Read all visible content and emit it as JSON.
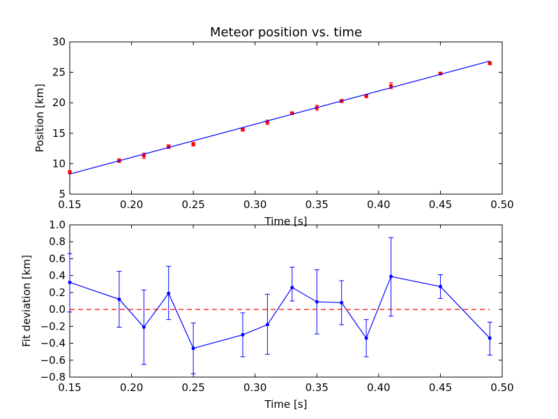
{
  "chart_data": [
    {
      "type": "scatter",
      "title": "Meteor position vs. time",
      "xlabel": "Time [s]",
      "ylabel": "Position [km]",
      "xlim": [
        0.15,
        0.5
      ],
      "ylim": [
        5,
        30
      ],
      "xticks": [
        "0.15",
        "0.20",
        "0.25",
        "0.30",
        "0.35",
        "0.40",
        "0.45",
        "0.50"
      ],
      "yticks": [
        "5",
        "10",
        "15",
        "20",
        "25",
        "30"
      ],
      "series": [
        {
          "kind": "points_with_error_bars",
          "color": "#ff0000",
          "x": [
            0.15,
            0.19,
            0.21,
            0.23,
            0.25,
            0.29,
            0.31,
            0.33,
            0.35,
            0.37,
            0.39,
            0.41,
            0.45,
            0.49
          ],
          "y": [
            8.6,
            10.5,
            11.3,
            12.8,
            13.2,
            15.6,
            16.8,
            18.3,
            19.2,
            20.3,
            21.1,
            22.8,
            24.8,
            26.5
          ],
          "err": [
            0.25,
            0.3,
            0.45,
            0.3,
            0.3,
            0.25,
            0.35,
            0.2,
            0.4,
            0.25,
            0.25,
            0.5,
            0.2,
            0.25
          ]
        },
        {
          "kind": "fit_line",
          "color": "#0000ff",
          "x": [
            0.15,
            0.49
          ],
          "y": [
            8.3,
            26.85
          ]
        }
      ],
      "grid": false
    },
    {
      "type": "line",
      "title": "",
      "xlabel": "Time [s]",
      "ylabel": "Fit deviation [km]",
      "xlim": [
        0.15,
        0.5
      ],
      "ylim": [
        -0.8,
        1.0
      ],
      "xticks": [
        "0.15",
        "0.20",
        "0.25",
        "0.30",
        "0.35",
        "0.40",
        "0.45",
        "0.50"
      ],
      "yticks": [
        "−0.8",
        "−0.6",
        "−0.4",
        "−0.2",
        "0.0",
        "0.2",
        "0.4",
        "0.6",
        "0.8",
        "1.0"
      ],
      "series": [
        {
          "kind": "line_with_error_bars",
          "color": "#0000ff",
          "x": [
            0.15,
            0.19,
            0.21,
            0.23,
            0.25,
            0.29,
            0.31,
            0.33,
            0.35,
            0.37,
            0.39,
            0.41,
            0.45,
            0.49
          ],
          "y": [
            0.32,
            0.12,
            -0.21,
            0.19,
            -0.46,
            -0.3,
            -0.18,
            0.26,
            0.09,
            0.08,
            -0.34,
            0.39,
            0.27,
            -0.34
          ],
          "err_low": [
            0.35,
            0.33,
            0.44,
            0.31,
            0.3,
            0.26,
            0.35,
            0.16,
            0.38,
            0.26,
            0.22,
            0.47,
            0.14,
            0.2
          ],
          "err_high": [
            0.34,
            0.33,
            0.44,
            0.32,
            0.3,
            0.26,
            0.36,
            0.24,
            0.38,
            0.26,
            0.22,
            0.46,
            0.14,
            0.19
          ]
        },
        {
          "kind": "zero_reference",
          "color": "#ff0000",
          "y": 0,
          "style": "dashed"
        }
      ],
      "grid": false
    }
  ]
}
